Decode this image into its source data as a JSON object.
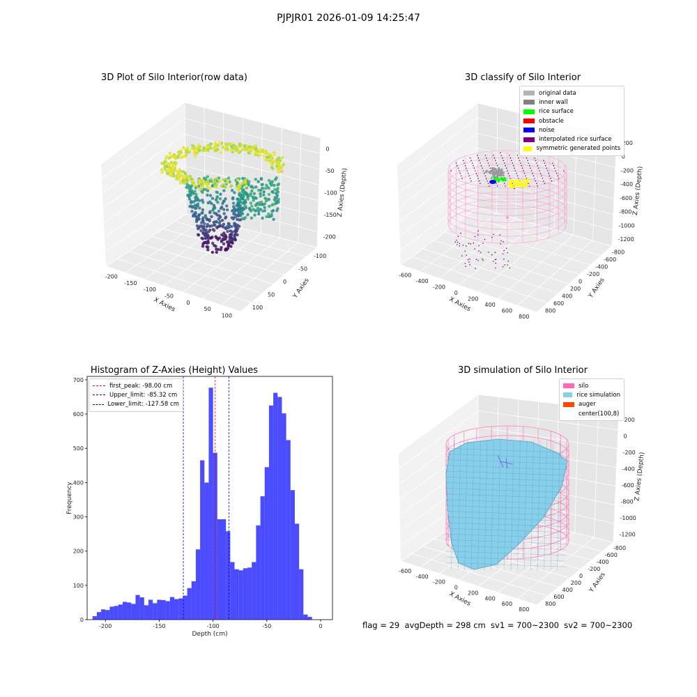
{
  "figure": {
    "suptitle": "PJPJR01 2026-01-09 14:25:47",
    "status_line": "flag = 29  avgDepth = 298 cm  sv1 = 700~2300  sv2 = 700~2300"
  },
  "panels": {
    "raw": {
      "title": "3D Plot of Silo Interior(row data)",
      "xlabel": "X Axies",
      "ylabel": "Y Axies",
      "zlabel": "Z Axies (Depth)",
      "xticks": [
        "-200",
        "-150",
        "-100",
        "-50",
        "0",
        "50",
        "100"
      ],
      "yticks": [
        "-100",
        "-50",
        "0",
        "50",
        "100"
      ],
      "zticks": [
        "0",
        "-50",
        "-100",
        "-150",
        "-200"
      ]
    },
    "classify": {
      "title": "3D classify of Silo Interior",
      "xlabel": "X Axies",
      "ylabel": "Y Axies",
      "zlabel": "Z Axies (Depth)",
      "xticks": [
        "-600",
        "-400",
        "-200",
        "0",
        "200",
        "400",
        "600",
        "800"
      ],
      "yticks": [
        "-800",
        "-600",
        "-400",
        "-200",
        "0",
        "200",
        "400",
        "600",
        "800"
      ],
      "zticks": [
        "200",
        "0",
        "-200",
        "-400",
        "-600",
        "-800",
        "-1000",
        "-1200"
      ],
      "legend": [
        {
          "label": "original data",
          "color": "#b3b3b3"
        },
        {
          "label": "inner wall",
          "color": "#808080"
        },
        {
          "label": "rice surface",
          "color": "#00ff00"
        },
        {
          "label": "obstacle",
          "color": "#ff0000"
        },
        {
          "label": "noise",
          "color": "#0000ff"
        },
        {
          "label": "interpolated rice surface",
          "color": "#800080"
        },
        {
          "label": "symmetric generated points",
          "color": "#ffff00"
        }
      ]
    },
    "histogram": {
      "title": "Histogram of Z-Axies (Height) Values",
      "xlabel": "Depth (cm)",
      "ylabel": "Frequency",
      "legend": [
        {
          "label": "first_peak: -98.00 cm",
          "color": "#ff0000"
        },
        {
          "label": "Upper_limit: -85.32 cm",
          "color": "#0000c8"
        },
        {
          "label": "Lower_limit: -127.58 cm",
          "color": "#0000c8"
        }
      ]
    },
    "simulation": {
      "title": "3D simulation of Silo Interior",
      "xlabel": "X Axies",
      "ylabel": "Y Axies",
      "zlabel": "Z Axies (Depth)",
      "xticks": [
        "-600",
        "-400",
        "-200",
        "0",
        "200",
        "400",
        "600",
        "800"
      ],
      "yticks": [
        "-800",
        "-600",
        "-400",
        "-200",
        "0",
        "200",
        "400",
        "600",
        "800"
      ],
      "zticks": [
        "200",
        "0",
        "-200",
        "-400",
        "-600",
        "-800",
        "-1000",
        "-1200"
      ],
      "legend": [
        {
          "label": "silo",
          "color": "#ff69b4"
        },
        {
          "label": "rice simulation",
          "color": "#87ceeb"
        },
        {
          "label": "auger",
          "color": "#ff4500"
        },
        {
          "label": "center(100,8)",
          "color": "#ffffff"
        }
      ]
    }
  },
  "chart_data": [
    {
      "type": "scatter",
      "title": "3D Plot of Silo Interior(row data)",
      "xlabel": "X Axies",
      "ylabel": "Y Axies",
      "zlabel": "Z Axies (Depth)",
      "xlim": [
        -230,
        110
      ],
      "ylim": [
        -120,
        120
      ],
      "zlim": [
        -230,
        5
      ],
      "colormap": "viridis"
    },
    {
      "type": "scatter",
      "title": "3D classify of Silo Interior",
      "xlabel": "X Axies",
      "ylabel": "Y Axies",
      "zlabel": "Z Axies (Depth)",
      "xlim": [
        -700,
        900
      ],
      "ylim": [
        -850,
        850
      ],
      "zlim": [
        -1300,
        250
      ],
      "series": [
        {
          "name": "original data",
          "color": "#b3b3b3"
        },
        {
          "name": "inner wall",
          "color": "#808080"
        },
        {
          "name": "rice surface",
          "color": "#00ff00"
        },
        {
          "name": "obstacle",
          "color": "#ff0000"
        },
        {
          "name": "noise",
          "color": "#0000ff"
        },
        {
          "name": "interpolated rice surface",
          "color": "#800080"
        },
        {
          "name": "symmetric generated points",
          "color": "#ffff00"
        }
      ]
    },
    {
      "type": "bar",
      "title": "Histogram of Z-Axies (Height) Values",
      "xlabel": "Depth (cm)",
      "ylabel": "Frequency",
      "xlim": [
        -217,
        11
      ],
      "ylim": [
        0,
        710
      ],
      "xticks": [
        -200,
        -150,
        -100,
        -50,
        0
      ],
      "yticks": [
        0,
        100,
        200,
        300,
        400,
        500,
        600,
        700
      ],
      "bin_width": 4,
      "bin_start": [
        -212,
        -208,
        -204,
        -200,
        -196,
        -192,
        -188,
        -184,
        -180,
        -176,
        -172,
        -168,
        -164,
        -160,
        -156,
        -152,
        -148,
        -144,
        -140,
        -136,
        -132,
        -128,
        -124,
        -120,
        -116,
        -112,
        -108,
        -104,
        -100,
        -96,
        -92,
        -88,
        -84,
        -80,
        -76,
        -72,
        -68,
        -64,
        -60,
        -56,
        -52,
        -48,
        -44,
        -40,
        -36,
        -32,
        -28,
        -24,
        -20,
        -16,
        -12,
        -8,
        -4
      ],
      "values": [
        10,
        22,
        30,
        28,
        38,
        40,
        44,
        52,
        50,
        46,
        72,
        65,
        42,
        58,
        48,
        58,
        57,
        54,
        66,
        60,
        62,
        70,
        92,
        112,
        205,
        465,
        400,
        677,
        487,
        293,
        293,
        258,
        168,
        147,
        144,
        150,
        152,
        168,
        275,
        360,
        445,
        625,
        662,
        650,
        602,
        524,
        378,
        280,
        147,
        15,
        8,
        0,
        0
      ],
      "color": "#0000ff",
      "vlines": [
        {
          "label": "first_peak: -98.00 cm",
          "x": -98.0,
          "color": "#ff0000"
        },
        {
          "label": "Upper_limit: -85.32 cm",
          "x": -85.32,
          "color": "#0000c8"
        },
        {
          "label": "Lower_limit: -127.58 cm",
          "x": -127.58,
          "color": "#0000c8"
        }
      ]
    },
    {
      "type": "area",
      "title": "3D simulation of Silo Interior",
      "xlabel": "X Axies",
      "ylabel": "Y Axies",
      "zlabel": "Z Axies (Depth)",
      "xlim": [
        -700,
        900
      ],
      "ylim": [
        -850,
        850
      ],
      "zlim": [
        -1300,
        250
      ],
      "series": [
        {
          "name": "silo",
          "color": "#ff69b4"
        },
        {
          "name": "rice simulation",
          "color": "#87ceeb"
        },
        {
          "name": "auger",
          "color": "#ff4500"
        },
        {
          "name": "center(100,8)",
          "color": "#ffffff"
        }
      ]
    }
  ]
}
